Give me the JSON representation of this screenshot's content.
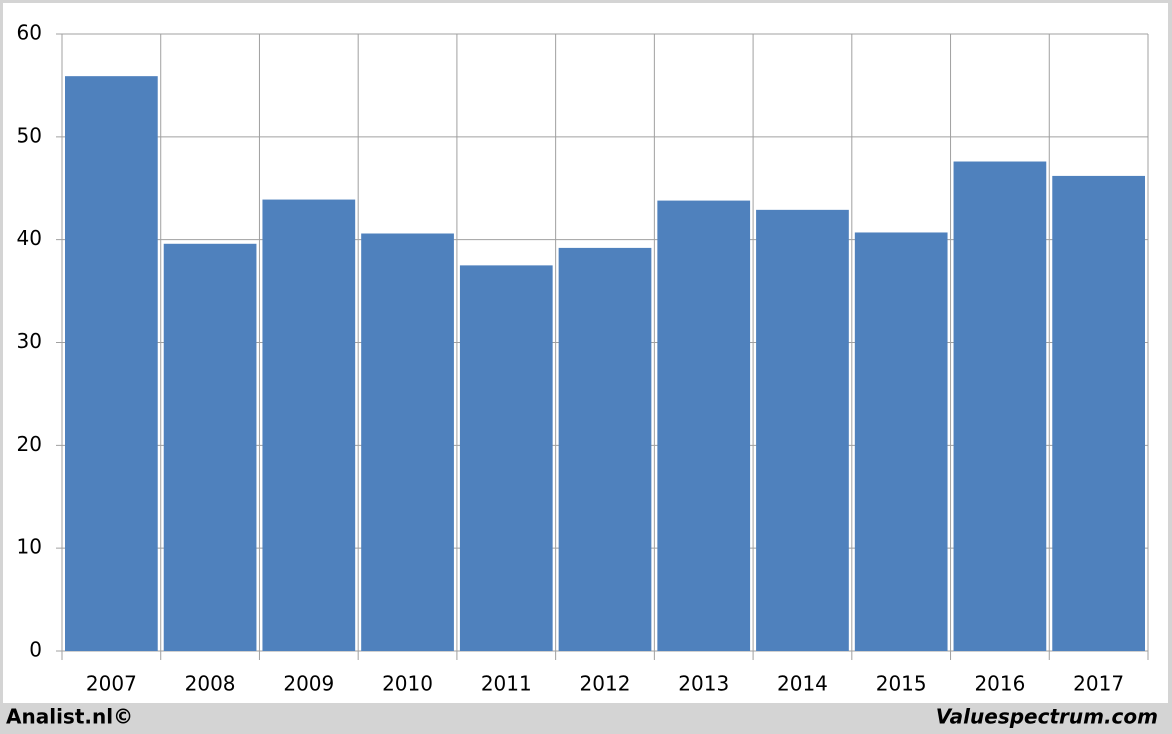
{
  "chart_data": {
    "type": "bar",
    "categories": [
      "2007",
      "2008",
      "2009",
      "2010",
      "2011",
      "2012",
      "2013",
      "2014",
      "2015",
      "2016",
      "2017"
    ],
    "values": [
      55.9,
      39.6,
      43.9,
      40.6,
      37.5,
      39.2,
      43.8,
      42.9,
      40.7,
      47.6,
      46.2
    ],
    "color": "#4f81bd",
    "ylim": [
      0,
      60
    ],
    "yticks": [
      0,
      10,
      20,
      30,
      40,
      50,
      60
    ],
    "grid": true
  },
  "footer": {
    "left": "Analist.nl©",
    "right": "Valuespectrum.com"
  }
}
